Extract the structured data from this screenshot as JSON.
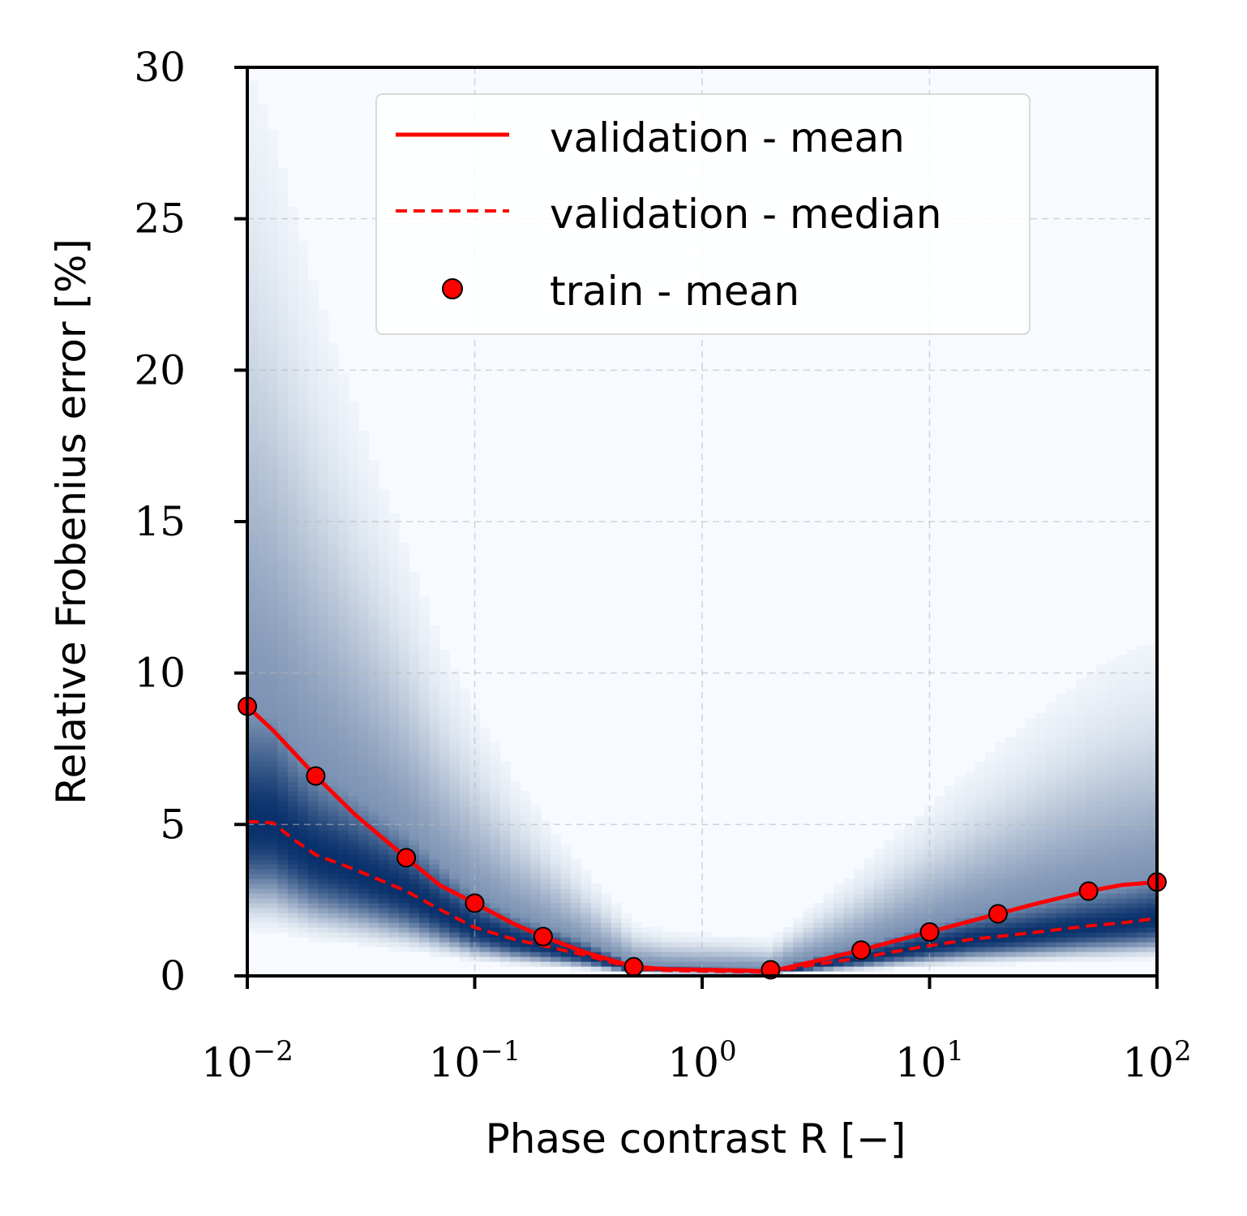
{
  "chart_data": {
    "type": "line",
    "x_scale": "log",
    "xlabel": "Phase contrast R [−]",
    "ylabel": "Relative Frobenius error [%]",
    "xlim": [
      0.01,
      100
    ],
    "ylim": [
      0,
      30
    ],
    "x_ticks": [
      {
        "value": 0.01,
        "base": "10",
        "exp": "−2"
      },
      {
        "value": 0.1,
        "base": "10",
        "exp": "−1"
      },
      {
        "value": 1,
        "base": "10",
        "exp": "0"
      },
      {
        "value": 10,
        "base": "10",
        "exp": "1"
      },
      {
        "value": 100,
        "base": "10",
        "exp": "2"
      }
    ],
    "y_ticks": [
      0,
      5,
      10,
      15,
      20,
      25,
      30
    ],
    "grid": true,
    "legend_position": "top-center",
    "colors": {
      "series": "#ff0000",
      "heat_dark": "#08306b",
      "heat_light": "#f7fbff"
    },
    "series": [
      {
        "name": "validation - mean",
        "style": "solid",
        "x": [
          0.01,
          0.013,
          0.02,
          0.03,
          0.05,
          0.07,
          0.1,
          0.15,
          0.2,
          0.3,
          0.5,
          0.7,
          1,
          1.5,
          2,
          3,
          5,
          7,
          10,
          15,
          20,
          30,
          50,
          70,
          100
        ],
        "y": [
          8.9,
          8.1,
          6.6,
          5.3,
          3.9,
          3.0,
          2.4,
          1.7,
          1.3,
          0.8,
          0.3,
          0.22,
          0.2,
          0.18,
          0.15,
          0.45,
          0.85,
          1.15,
          1.45,
          1.8,
          2.05,
          2.4,
          2.8,
          3.0,
          3.1
        ]
      },
      {
        "name": "validation - median",
        "style": "dashed",
        "x": [
          0.01,
          0.013,
          0.016,
          0.02,
          0.03,
          0.05,
          0.07,
          0.1,
          0.15,
          0.2,
          0.3,
          0.5,
          0.7,
          1,
          1.5,
          2,
          3,
          5,
          7,
          10,
          15,
          20,
          30,
          50,
          70,
          100
        ],
        "y": [
          5.1,
          5.05,
          4.5,
          4.0,
          3.5,
          2.8,
          2.2,
          1.6,
          1.2,
          1.0,
          0.7,
          0.25,
          0.18,
          0.16,
          0.14,
          0.12,
          0.35,
          0.6,
          0.8,
          1.0,
          1.2,
          1.3,
          1.45,
          1.65,
          1.75,
          1.9
        ]
      },
      {
        "name": "train - mean",
        "style": "markers",
        "x": [
          0.01,
          0.02,
          0.05,
          0.1,
          0.2,
          0.5,
          2,
          5,
          10,
          20,
          50,
          100
        ],
        "y": [
          8.9,
          6.6,
          3.9,
          2.4,
          1.3,
          0.3,
          0.2,
          0.85,
          1.45,
          2.05,
          2.8,
          3.1
        ]
      }
    ]
  }
}
